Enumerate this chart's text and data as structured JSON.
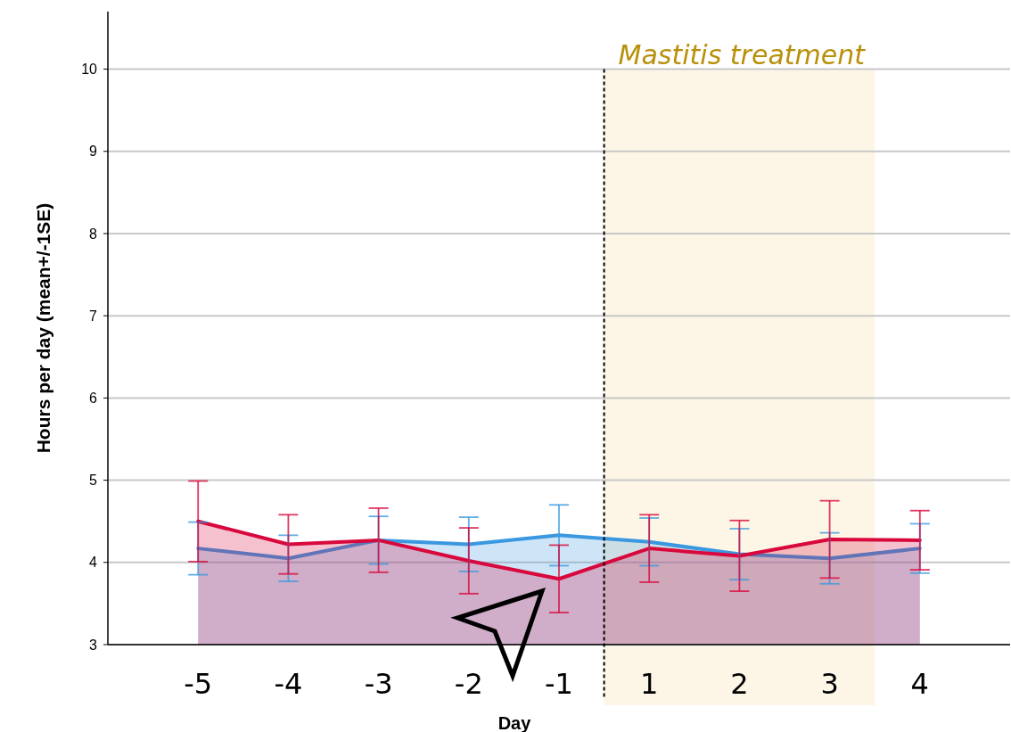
{
  "chart_data": {
    "type": "area",
    "xlabel": "Day",
    "ylabel": "Hours per day (mean+/-1SE)",
    "categories": [
      "-5",
      "-4",
      "-3",
      "-2",
      "-1",
      "1",
      "2",
      "3",
      "4"
    ],
    "series": [
      {
        "color": "#3a98e0",
        "values": [
          4.17,
          4.05,
          4.27,
          4.22,
          4.33,
          4.25,
          4.1,
          4.05,
          4.17
        ],
        "errors": [
          0.32,
          0.28,
          0.29,
          0.33,
          0.37,
          0.29,
          0.31,
          0.31,
          0.3
        ]
      },
      {
        "color": "#d8083c",
        "values": [
          4.5,
          4.22,
          4.27,
          4.02,
          3.8,
          4.17,
          4.08,
          4.28,
          4.27
        ],
        "errors": [
          0.49,
          0.36,
          0.39,
          0.4,
          0.41,
          0.41,
          0.43,
          0.47,
          0.36
        ]
      }
    ],
    "ylim": [
      3,
      10.7
    ],
    "yticks": [
      3,
      4,
      5,
      6,
      7,
      8,
      9,
      10
    ],
    "grid": "y",
    "marker": "none",
    "line_style": "solid",
    "ref_lines": [
      {
        "axis": "x",
        "value": "1",
        "color": "#000000",
        "line_style": "dashed"
      }
    ],
    "bands": [
      {
        "axis": "x",
        "from": "1",
        "to": "3",
        "label": "Mastitis treatment",
        "color": "#fdf6e6"
      }
    ]
  }
}
